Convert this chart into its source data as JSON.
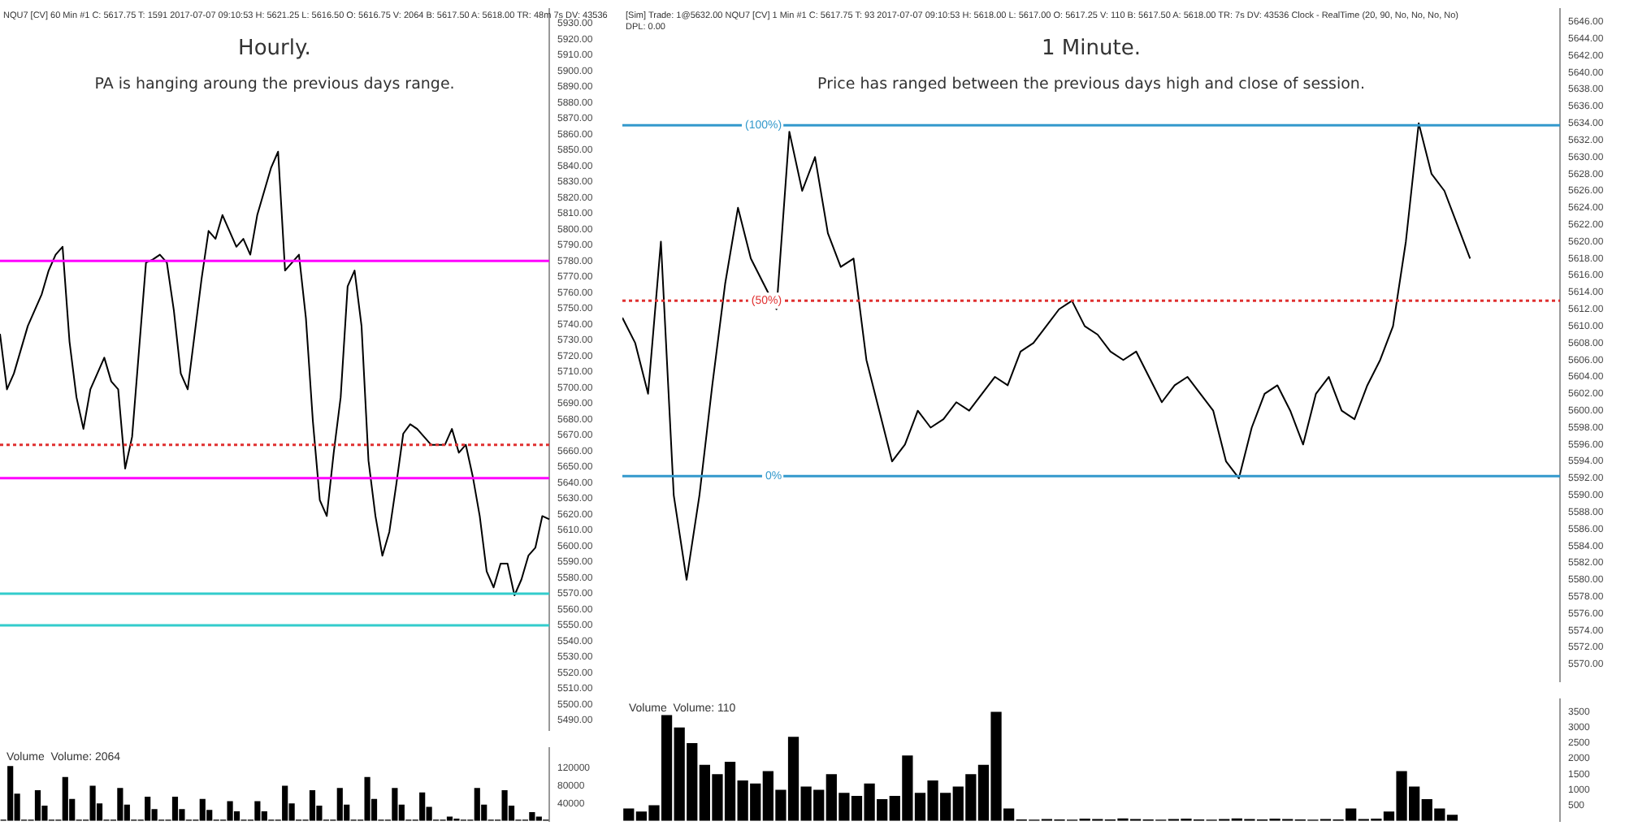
{
  "chart_data": [
    {
      "type": "line",
      "title": "Hourly.",
      "subtitle": "PA is hanging aroung the previous days range.",
      "annotations": [
        "NQU7 [CV] 60 Min #1 C: 5617.75 T: 1591 2017-07-07 09:10:53 H: 5621.25 L: 5616.50 O: 5616.75 V: 2064 B: 5617.50 A: 5618.00 TR: 48m 7s DV: 43536"
      ],
      "categories": [
        null,
        null,
        null,
        null,
        null,
        null,
        null,
        null,
        null,
        null,
        null,
        null,
        null,
        null,
        null,
        null,
        null,
        null,
        null,
        null,
        null,
        null,
        null,
        null,
        null,
        null,
        null,
        null,
        null,
        null,
        null,
        null,
        null,
        null,
        null,
        null,
        null,
        null,
        null,
        null,
        null,
        null,
        null,
        null,
        null,
        null,
        null,
        null,
        null,
        null,
        null,
        null,
        null,
        null,
        null,
        null,
        null,
        null,
        null,
        null,
        null,
        null,
        null,
        null,
        null,
        null,
        null,
        null,
        null,
        null,
        null,
        null,
        null,
        null,
        null,
        null,
        null,
        null,
        null,
        null
      ],
      "series": [
        {
          "color": "#000000",
          "values": [
            5734,
            5699,
            5709,
            5724,
            5739,
            5749,
            5759,
            5774,
            5784,
            5789,
            5729,
            5694,
            5674,
            5699,
            5709,
            5719,
            5704,
            5699,
            5649,
            5669,
            5724,
            5779,
            5781,
            5784,
            5779,
            5749,
            5709,
            5699,
            5734,
            5769,
            5799,
            5794,
            5809,
            5799,
            5789,
            5794,
            5784,
            5809,
            5824,
            5839,
            5849,
            5774,
            5779,
            5784,
            5744,
            5679,
            5629,
            5619,
            5659,
            5694,
            5764,
            5774,
            5739,
            5654,
            5619,
            5594,
            5609,
            5639,
            5671,
            5677,
            5674,
            5669,
            5664,
            5664,
            5664,
            5674,
            5659,
            5664,
            5644,
            5619,
            5584,
            5574,
            5589,
            5589,
            5569,
            5579,
            5594,
            5599,
            5619,
            5617
          ]
        }
      ],
      "ylim": [
        5484,
        5939
      ],
      "yticks": [
        {
          "value": 5490,
          "label": "5490.00"
        },
        {
          "value": 5500,
          "label": "5500.00"
        },
        {
          "value": 5510,
          "label": "5510.00"
        },
        {
          "value": 5520,
          "label": "5520.00"
        },
        {
          "value": 5530,
          "label": "5530.00"
        },
        {
          "value": 5540,
          "label": "5540.00"
        },
        {
          "value": 5550,
          "label": "5550.00"
        },
        {
          "value": 5560,
          "label": "5560.00"
        },
        {
          "value": 5570,
          "label": "5570.00"
        },
        {
          "value": 5580,
          "label": "5580.00"
        },
        {
          "value": 5590,
          "label": "5590.00"
        },
        {
          "value": 5600,
          "label": "5600.00"
        },
        {
          "value": 5610,
          "label": "5610.00"
        },
        {
          "value": 5620,
          "label": "5620.00"
        },
        {
          "value": 5630,
          "label": "5630.00"
        },
        {
          "value": 5640,
          "label": "5640.00"
        },
        {
          "value": 5650,
          "label": "5650.00"
        },
        {
          "value": 5660,
          "label": "5660.00"
        },
        {
          "value": 5670,
          "label": "5670.00"
        },
        {
          "value": 5680,
          "label": "5680.00"
        },
        {
          "value": 5690,
          "label": "5690.00"
        },
        {
          "value": 5700,
          "label": "5700.00"
        },
        {
          "value": 5710,
          "label": "5710.00"
        },
        {
          "value": 5720,
          "label": "5720.00"
        },
        {
          "value": 5730,
          "label": "5730.00"
        },
        {
          "value": 5740,
          "label": "5740.00"
        },
        {
          "value": 5750,
          "label": "5750.00"
        },
        {
          "value": 5760,
          "label": "5760.00"
        },
        {
          "value": 5770,
          "label": "5770.00"
        },
        {
          "value": 5780,
          "label": "5780.00"
        },
        {
          "value": 5790,
          "label": "5790.00"
        },
        {
          "value": 5800,
          "label": "5800.00"
        },
        {
          "value": 5810,
          "label": "5810.00"
        },
        {
          "value": 5820,
          "label": "5820.00"
        },
        {
          "value": 5830,
          "label": "5830.00"
        },
        {
          "value": 5840,
          "label": "5840.00"
        },
        {
          "value": 5850,
          "label": "5850.00"
        },
        {
          "value": 5860,
          "label": "5860.00"
        },
        {
          "value": 5870,
          "label": "5870.00"
        },
        {
          "value": 5880,
          "label": "5880.00"
        },
        {
          "value": 5890,
          "label": "5890.00"
        },
        {
          "value": 5900,
          "label": "5900.00"
        },
        {
          "value": 5910,
          "label": "5910.00"
        },
        {
          "value": 5920,
          "label": "5920.00"
        },
        {
          "value": 5930,
          "label": "5930.00"
        }
      ],
      "ref_lines": [
        {
          "axis": "y",
          "value": 5780,
          "color": "#ff00ff",
          "line_style": "solid"
        },
        {
          "axis": "y",
          "value": 5643,
          "color": "#ff00ff",
          "line_style": "solid"
        },
        {
          "axis": "y",
          "value": 5664,
          "color": "#e03030",
          "line_style": "dotted"
        },
        {
          "axis": "y",
          "value": 5570,
          "color": "#33cccc",
          "line_style": "solid"
        },
        {
          "axis": "y",
          "value": 5550,
          "color": "#33cccc",
          "line_style": "solid"
        }
      ],
      "tick_labels": "y",
      "grid": false,
      "legend": false,
      "marker": "none",
      "line_style": "solid"
    },
    {
      "type": "bar",
      "title": "Volume  Volume: 2064",
      "categories": [
        null,
        null,
        null,
        null,
        null,
        null,
        null,
        null,
        null,
        null,
        null,
        null,
        null,
        null,
        null,
        null,
        null,
        null,
        null,
        null,
        null,
        null,
        null,
        null,
        null,
        null,
        null,
        null,
        null,
        null,
        null,
        null,
        null,
        null,
        null,
        null,
        null,
        null,
        null,
        null,
        null,
        null,
        null,
        null,
        null,
        null,
        null,
        null,
        null,
        null,
        null,
        null,
        null,
        null,
        null,
        null,
        null,
        null,
        null,
        null,
        null,
        null,
        null,
        null,
        null,
        null,
        null,
        null,
        null,
        null,
        null,
        null,
        null,
        null,
        null,
        null,
        null,
        null,
        null,
        null
      ],
      "series": [
        {
          "color": "#000000",
          "values": [
            3000,
            125000,
            62000,
            3000,
            3000,
            70000,
            35000,
            3000,
            3000,
            100000,
            50000,
            3000,
            3000,
            80000,
            40000,
            3000,
            3000,
            75000,
            37000,
            3000,
            3000,
            55000,
            27000,
            3000,
            3000,
            55000,
            27000,
            3000,
            3000,
            50000,
            25000,
            3000,
            3000,
            45000,
            22000,
            3000,
            3000,
            45000,
            22000,
            3000,
            3000,
            80000,
            40000,
            3000,
            3000,
            70000,
            35000,
            3000,
            3000,
            75000,
            37000,
            3000,
            3000,
            100000,
            50000,
            3000,
            3000,
            75000,
            37000,
            3000,
            3000,
            65000,
            32000,
            3000,
            3000,
            10000,
            5000,
            3000,
            3000,
            75000,
            37000,
            3000,
            3000,
            70000,
            35000,
            3000,
            3000,
            20000,
            10000,
            3000
          ]
        }
      ],
      "ylim": [
        0,
        166000
      ],
      "yticks": [
        40000,
        80000,
        120000
      ],
      "tick_labels": "y",
      "grid": false,
      "legend": false
    },
    {
      "type": "line",
      "title": "1 Minute.",
      "subtitle": "Price has ranged between the previous days high and close of session.",
      "annotations": [
        "[Sim] Trade: 1@5632.00 NQU7 [CV] 1 Min #1 C: 5617.75 T: 93 2017-07-07 09:10:53 H: 5618.00 L: 5617.00 O: 5617.25 V: 110 B: 5617.50 A: 5618.00 TR: 7s DV: 43536 Clock - RealTime (20, 90, No, No, No, No)",
        "DPL: 0.00",
        {
          "text": "(100%)",
          "y": 5633.75
        },
        {
          "text": "(50%)",
          "y": 5613
        },
        {
          "text": "0%",
          "y": 5592.25
        }
      ],
      "categories": [
        null,
        null,
        null,
        null,
        null,
        null,
        null,
        null,
        null,
        null,
        null,
        null,
        null,
        null,
        null,
        null,
        null,
        null,
        null,
        null,
        null,
        null,
        null,
        null,
        null,
        null,
        null,
        null,
        null,
        null,
        null,
        null,
        null,
        null,
        null,
        null,
        null,
        null,
        null,
        null,
        null,
        null,
        null,
        null,
        null,
        null,
        null,
        null,
        null,
        null,
        null,
        null,
        null,
        null,
        null,
        null,
        null,
        null,
        null,
        null,
        null,
        null,
        null,
        null,
        null,
        null,
        null,
        null,
        null,
        null,
        null,
        null,
        null,
        null
      ],
      "series": [
        {
          "color": "#000000",
          "values": [
            5611,
            5608,
            5602,
            5620,
            5590,
            5580,
            5590,
            5603,
            5615,
            5624,
            5618,
            5615,
            5612,
            5633,
            5626,
            5630,
            5621,
            5617,
            5618,
            5606,
            5600,
            5594,
            5596,
            5600,
            5598,
            5599,
            5601,
            5600,
            5602,
            5604,
            5603,
            5607,
            5608,
            5610,
            5612,
            5613,
            5610,
            5609,
            5607,
            5606,
            5607,
            5604,
            5601,
            5603,
            5604,
            5602,
            5600,
            5594,
            5592,
            5598,
            5602,
            5603,
            5600,
            5596,
            5602,
            5604,
            5600,
            5599,
            5603,
            5606,
            5610,
            5620,
            5634,
            5628,
            5626,
            5622,
            5618,
            null,
            null,
            null,
            null,
            null,
            null,
            null
          ]
        }
      ],
      "ylim": [
        5568,
        5647.5
      ],
      "yticks": [
        {
          "value": 5570,
          "label": "5570.00"
        },
        {
          "value": 5572,
          "label": "5572.00"
        },
        {
          "value": 5574,
          "label": "5574.00"
        },
        {
          "value": 5576,
          "label": "5576.00"
        },
        {
          "value": 5578,
          "label": "5578.00"
        },
        {
          "value": 5580,
          "label": "5580.00"
        },
        {
          "value": 5582,
          "label": "5582.00"
        },
        {
          "value": 5584,
          "label": "5584.00"
        },
        {
          "value": 5586,
          "label": "5586.00"
        },
        {
          "value": 5588,
          "label": "5588.00"
        },
        {
          "value": 5590,
          "label": "5590.00"
        },
        {
          "value": 5592,
          "label": "5592.00"
        },
        {
          "value": 5594,
          "label": "5594.00"
        },
        {
          "value": 5596,
          "label": "5596.00"
        },
        {
          "value": 5598,
          "label": "5598.00"
        },
        {
          "value": 5600,
          "label": "5600.00"
        },
        {
          "value": 5602,
          "label": "5602.00"
        },
        {
          "value": 5604,
          "label": "5604.00"
        },
        {
          "value": 5606,
          "label": "5606.00"
        },
        {
          "value": 5608,
          "label": "5608.00"
        },
        {
          "value": 5610,
          "label": "5610.00"
        },
        {
          "value": 5612,
          "label": "5612.00"
        },
        {
          "value": 5614,
          "label": "5614.00"
        },
        {
          "value": 5616,
          "label": "5616.00"
        },
        {
          "value": 5618,
          "label": "5618.00"
        },
        {
          "value": 5620,
          "label": "5620.00"
        },
        {
          "value": 5622,
          "label": "5622.00"
        },
        {
          "value": 5624,
          "label": "5624.00"
        },
        {
          "value": 5626,
          "label": "5626.00"
        },
        {
          "value": 5628,
          "label": "5628.00"
        },
        {
          "value": 5630,
          "label": "5630.00"
        },
        {
          "value": 5632,
          "label": "5632.00"
        },
        {
          "value": 5634,
          "label": "5634.00"
        },
        {
          "value": 5636,
          "label": "5636.00"
        },
        {
          "value": 5638,
          "label": "5638.00"
        },
        {
          "value": 5640,
          "label": "5640.00"
        },
        {
          "value": 5642,
          "label": "5642.00"
        },
        {
          "value": 5644,
          "label": "5644.00"
        },
        {
          "value": 5646,
          "label": "5646.00"
        }
      ],
      "ref_lines": [
        {
          "axis": "y",
          "value": 5633.75,
          "color": "#3399cc",
          "line_style": "solid"
        },
        {
          "axis": "y",
          "value": 5613,
          "color": "#e03030",
          "line_style": "dotted"
        },
        {
          "axis": "y",
          "value": 5592.25,
          "color": "#3399cc",
          "line_style": "solid"
        }
      ],
      "tick_labels": "y",
      "grid": false,
      "legend": false,
      "marker": "none",
      "line_style": "solid"
    },
    {
      "type": "bar",
      "title": "Volume  Volume: 110",
      "categories": [
        null,
        null,
        null,
        null,
        null,
        null,
        null,
        null,
        null,
        null,
        null,
        null,
        null,
        null,
        null,
        null,
        null,
        null,
        null,
        null,
        null,
        null,
        null,
        null,
        null,
        null,
        null,
        null,
        null,
        null,
        null,
        null,
        null,
        null,
        null,
        null,
        null,
        null,
        null,
        null,
        null,
        null,
        null,
        null,
        null,
        null,
        null,
        null,
        null,
        null,
        null,
        null,
        null,
        null,
        null,
        null,
        null,
        null,
        null,
        null,
        null,
        null,
        null,
        null,
        null,
        null,
        null,
        null,
        null,
        null,
        null,
        null,
        null,
        null
      ],
      "series": [
        {
          "color": "#000000",
          "values": [
            400,
            300,
            500,
            3400,
            3000,
            2500,
            1800,
            1500,
            1900,
            1300,
            1200,
            1600,
            1000,
            2700,
            1100,
            1000,
            1500,
            900,
            800,
            1200,
            700,
            800,
            2100,
            900,
            1300,
            900,
            1100,
            1500,
            1800,
            3500,
            400,
            50,
            40,
            60,
            50,
            40,
            70,
            60,
            50,
            80,
            60,
            50,
            40,
            60,
            70,
            50,
            40,
            60,
            80,
            60,
            50,
            70,
            60,
            50,
            40,
            60,
            50,
            400,
            60,
            70,
            300,
            1600,
            1100,
            700,
            400,
            200,
            null,
            null,
            null,
            null,
            null,
            null,
            null,
            null
          ]
        }
      ],
      "ylim": [
        0,
        3900
      ],
      "yticks": [
        500,
        1000,
        1500,
        2000,
        2500,
        3000,
        3500
      ],
      "tick_labels": "y",
      "grid": false,
      "legend": false
    }
  ]
}
